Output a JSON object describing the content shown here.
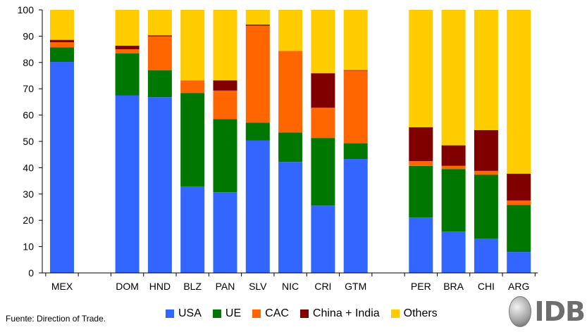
{
  "chart_data": {
    "type": "bar",
    "stacked": true,
    "ylim": [
      0,
      100
    ],
    "yticks": [
      0,
      10,
      20,
      30,
      40,
      50,
      60,
      70,
      80,
      90,
      100
    ],
    "groups": [
      [
        "MEX"
      ],
      [
        "DOM",
        "HND",
        "BLZ",
        "PAN",
        "SLV",
        "NIC",
        "CRI",
        "GTM"
      ],
      [
        "PER",
        "BRA",
        "CHI",
        "ARG"
      ]
    ],
    "categories": [
      "MEX",
      "DOM",
      "HND",
      "BLZ",
      "PAN",
      "SLV",
      "NIC",
      "CRI",
      "GTM",
      "PER",
      "BRA",
      "CHI",
      "ARG"
    ],
    "series": [
      {
        "name": "USA",
        "color": "#3366ff",
        "values": [
          80.2,
          67.4,
          66.8,
          32.9,
          30.7,
          50.4,
          42.2,
          25.6,
          43.3,
          21.1,
          15.7,
          13.0,
          8.0
        ]
      },
      {
        "name": "UE",
        "color": "#007700",
        "values": [
          5.5,
          16.1,
          10.2,
          35.5,
          27.8,
          6.7,
          11.2,
          25.7,
          6.0,
          19.6,
          23.8,
          24.3,
          17.8
        ]
      },
      {
        "name": "CAC",
        "color": "#ff6600",
        "values": [
          2.0,
          1.5,
          12.9,
          4.8,
          10.8,
          36.9,
          31.0,
          11.5,
          27.6,
          1.8,
          1.2,
          1.5,
          1.7
        ]
      },
      {
        "name": "China + India",
        "color": "#800000",
        "values": [
          0.9,
          1.4,
          0.4,
          0.0,
          3.9,
          0.4,
          0.0,
          13.1,
          0.2,
          12.9,
          7.8,
          15.5,
          10.2
        ]
      },
      {
        "name": "Others",
        "color": "#ffcc00",
        "values": [
          11.4,
          13.6,
          9.7,
          26.8,
          26.8,
          5.6,
          15.6,
          24.1,
          22.9,
          44.6,
          51.5,
          45.7,
          62.3
        ]
      }
    ]
  },
  "footer": {
    "source": "Fuente: Direction of Trade.",
    "logo_text": "IDB"
  }
}
